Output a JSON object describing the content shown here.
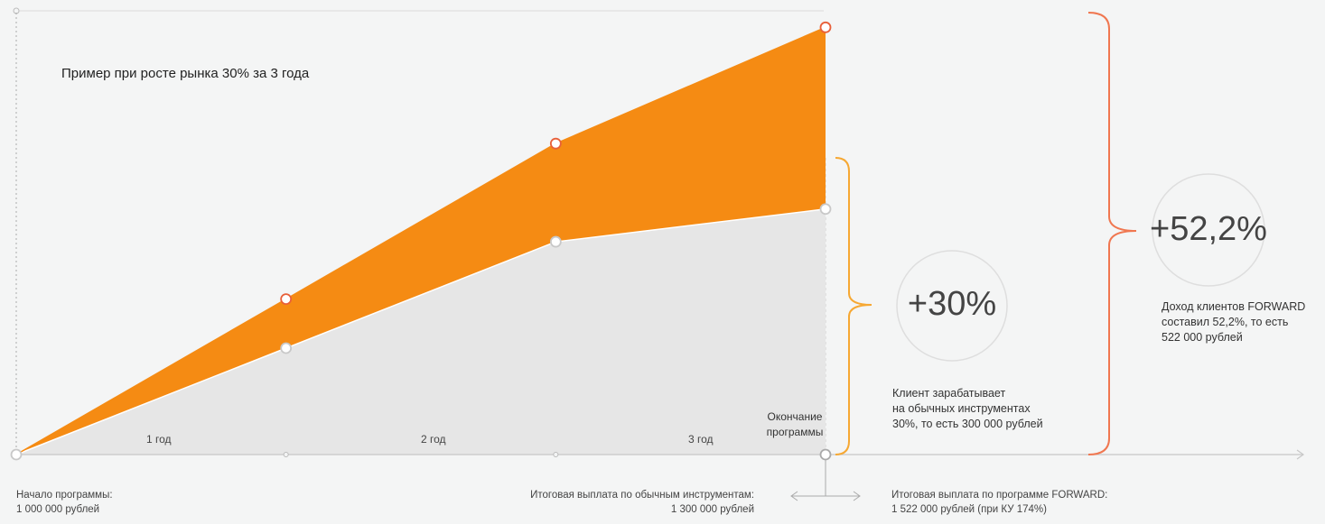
{
  "chart_data": {
    "type": "area",
    "title": "Пример при росте рынка 30% за 3 года",
    "categories": [
      "1 год",
      "2 год",
      "3 год"
    ],
    "x": [
      0,
      1,
      2,
      3
    ],
    "series": [
      {
        "values": [
          1000000,
          1130000,
          1260000,
          1300000
        ]
      },
      {
        "values": [
          1000000,
          1190000,
          1380000,
          1522000
        ]
      }
    ],
    "ylim": [
      1000000,
      1540000
    ],
    "colors": {
      "ordinary": "#e6e6e6",
      "forward": "#f58b13",
      "forward_marker": "#e8603a",
      "bracket_forward": "#f07750",
      "bracket_ordinary": "#f6a833",
      "axis": "#c8c8c8"
    },
    "end_label": "Окончание программы",
    "annotations": {
      "forward_pct": "+52,2%",
      "forward_note": [
        "Доход клиентов FORWARD",
        "составил 52,2%, то есть",
        "522 000 рублей"
      ],
      "ordinary_pct": "+30%",
      "ordinary_note": [
        "Клиент зарабатывает",
        "на обычных инструментах",
        "30%, то есть 300 000 рублей"
      ]
    },
    "footer": {
      "start": [
        "Начало программы:",
        "1 000 000 рублей"
      ],
      "ordinary_total": [
        "Итоговая выплата по обычным инструментам:",
        "1 300 000 рублей"
      ],
      "forward_total": [
        "Итоговая выплата по программе FORWARD:",
        "1 522 000 рублей (при КУ 174%)"
      ]
    }
  }
}
